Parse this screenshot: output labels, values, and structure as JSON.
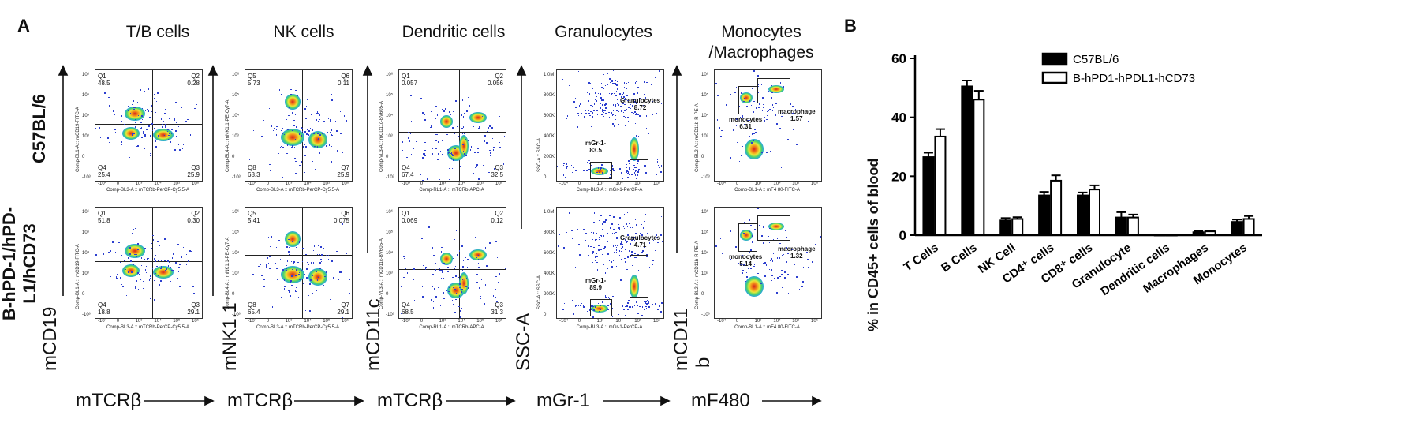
{
  "panel_a": {
    "letter": "A",
    "columns": [
      {
        "title": "T/B cells",
        "ylabel": "mCD19",
        "xlabel": "mTCRβ"
      },
      {
        "title": "NK cells",
        "ylabel": "mNK1.1",
        "xlabel": "mTCRβ"
      },
      {
        "title": "Dendritic cells",
        "ylabel": "mCD11c",
        "xlabel": "mTCRβ"
      },
      {
        "title": "Granulocytes",
        "ylabel": "SSC-A",
        "xlabel": "mGr-1"
      },
      {
        "title": "Monocytes\n/Macrophages",
        "ylabel": "mCD11",
        "ylabel2": "b",
        "xlabel": "mF480"
      }
    ],
    "rows": [
      {
        "label": "C57BL/6"
      },
      {
        "label": "B-hPD-1/hPD-\nL1/hCD73"
      }
    ],
    "plot_axes": {
      "tb": {
        "x": "Comp-BL3-A :: mTCRb-PerCP-Cy5.5-A",
        "y": "Comp-BL1-A :: mCD19-FITC-A"
      },
      "nk": {
        "x": "Comp-BL3-A :: mTCRb-PerCP-Cy5.5-A",
        "y": "Comp-BL4-A :: mNK1.1-PE-Cy7-A"
      },
      "dc": {
        "x": "Comp-RL1-A :: mTCRb-APC-A",
        "y": "Comp-VL3-A :: mCD11c-BV605-A"
      },
      "gr": {
        "x": "Comp-BL3-A :: mGr-1-PerCP-A",
        "y": "SSC-A :: SSC-A"
      },
      "mo": {
        "x": "Comp-BL1-A :: mF4 80-FITC-A",
        "y": "Comp-BL2-A :: mCD11b-R-PE-A"
      }
    },
    "plots": [
      [
        {
          "q_tl": "Q1\n48.5",
          "q_tr": "Q2\n0.28",
          "q_bl": "Q4\n25.4",
          "q_br": "Q3\n25.9"
        },
        {
          "q_tl": "Q5\n5.73",
          "q_tr": "Q6\n0.11",
          "q_bl": "Q8\n68.3",
          "q_br": "Q7\n25.9"
        },
        {
          "q_tl": "Q1\n0.057",
          "q_tr": "Q2\n0.056",
          "q_bl": "Q4\n67.4",
          "q_br": "Q3\n32.5"
        },
        {
          "gate1": "Granulocytes\n8.72",
          "gate2": "mGr-1-\n83.5"
        },
        {
          "gate1": "monocytes\n6.31",
          "gate2": "macrophage\n1.57"
        }
      ],
      [
        {
          "q_tl": "Q1\n51.8",
          "q_tr": "Q2\n0.30",
          "q_bl": "Q4\n18.8",
          "q_br": "Q3\n29.1"
        },
        {
          "q_tl": "Q5\n5.41",
          "q_tr": "Q6\n0.075",
          "q_bl": "Q8\n65.4",
          "q_br": "Q7\n29.1"
        },
        {
          "q_tl": "Q1\n0.069",
          "q_tr": "Q2\n0.12",
          "q_bl": "Q4\n68.5",
          "q_br": "Q3\n31.3"
        },
        {
          "gate1": "Granulocytes\n4.71",
          "gate2": "mGr-1-\n89.9"
        },
        {
          "gate1": "monocytes\n5.14",
          "gate2": "macrophage\n1.32"
        }
      ]
    ],
    "tick_labels": {
      "flow_y": [
        "10⁶",
        "10⁵",
        "10⁴",
        "10³",
        "0",
        "-10³"
      ],
      "flow_x": [
        "-10⁴",
        "0",
        "10³",
        "10⁴",
        "10⁵",
        "10⁶"
      ],
      "ssc_y": [
        "1.0M",
        "800K",
        "600K",
        "400K",
        "200K",
        "0"
      ]
    }
  },
  "panel_b": {
    "letter": "B"
  },
  "colors": {
    "c57": "#000000",
    "humanized": "#ffffff",
    "outline": "#000000"
  },
  "chart_data": {
    "type": "bar",
    "ylabel": "% in CD45+ cells of blood",
    "ylim": [
      0,
      60
    ],
    "yticks": [
      0,
      20,
      40,
      60
    ],
    "categories": [
      "T Cells",
      "B Cells",
      "NK Cell",
      "CD4⁺ cells",
      "CD8⁺ cells",
      "Granulocyte",
      "Dendritic cells",
      "Macrophages",
      "Monocytes"
    ],
    "series": [
      {
        "name": "C57BL/6",
        "values": [
          26.5,
          50.5,
          5.0,
          13.5,
          13.5,
          6.0,
          0.1,
          1.0,
          4.5
        ],
        "errors": [
          1.5,
          2.0,
          0.8,
          1.2,
          1.0,
          1.8,
          0.05,
          0.4,
          0.8
        ]
      },
      {
        "name": "B-hPD1-hPDL1-hCD73",
        "values": [
          33.5,
          46.0,
          5.5,
          18.5,
          15.5,
          6.0,
          0.1,
          1.3,
          5.5
        ],
        "errors": [
          2.5,
          3.0,
          0.6,
          1.8,
          1.4,
          1.0,
          0.05,
          0.3,
          1.0
        ]
      }
    ],
    "legend_position": "top-right"
  }
}
